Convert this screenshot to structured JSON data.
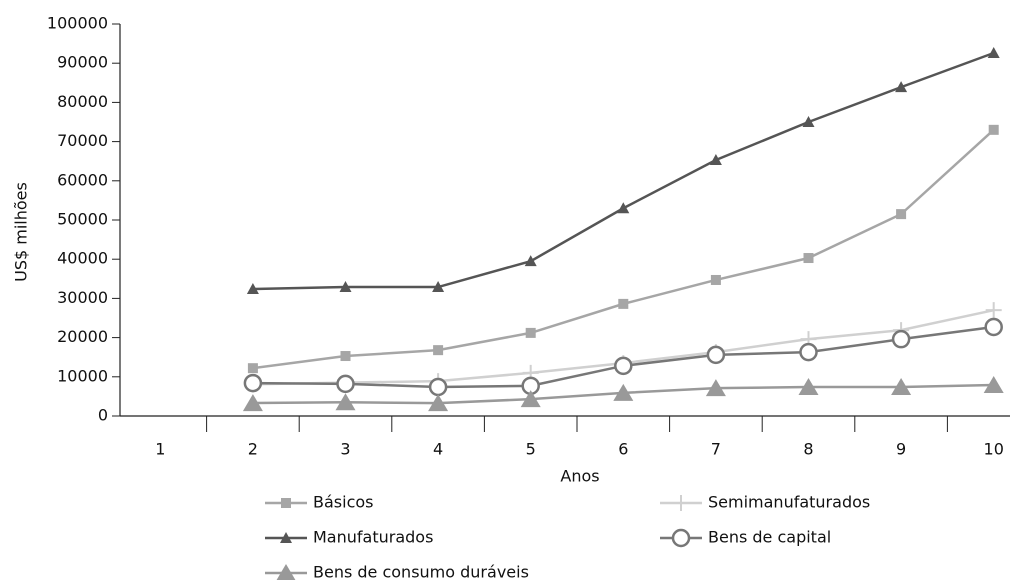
{
  "chart_data": {
    "type": "line",
    "xlabel": "Anos",
    "ylabel": "US$ milhões",
    "categories": [
      "1",
      "2",
      "3",
      "4",
      "5",
      "6",
      "7",
      "8",
      "9",
      "10"
    ],
    "series": [
      {
        "name": "Básicos",
        "color": "#a6a6a6",
        "marker": "square",
        "values": [
          null,
          12200,
          15300,
          16800,
          21200,
          28600,
          34700,
          40300,
          51500,
          73000
        ]
      },
      {
        "name": "Semimanufaturados",
        "color": "#d0d0d0",
        "marker": "plus",
        "values": [
          null,
          8100,
          8500,
          8900,
          11000,
          13500,
          16300,
          19600,
          21900,
          27000
        ]
      },
      {
        "name": "Manufaturados",
        "color": "#555555",
        "marker": "triangle",
        "values": [
          null,
          32400,
          32900,
          32900,
          39500,
          53000,
          65300,
          75000,
          83900,
          92600
        ]
      },
      {
        "name": "Bens de capital",
        "color": "#777777",
        "marker": "circle",
        "values": [
          null,
          8400,
          8200,
          7400,
          7700,
          12800,
          15600,
          16300,
          19600,
          22700
        ]
      },
      {
        "name": "Bens de consumo duráveis",
        "color": "#999999",
        "marker": "bigtriangle",
        "values": [
          null,
          3300,
          3500,
          3300,
          4300,
          5900,
          7100,
          7400,
          7400,
          7900
        ]
      }
    ],
    "ylim": [
      0,
      100000
    ],
    "yticks": [
      0,
      10000,
      20000,
      30000,
      40000,
      50000,
      60000,
      70000,
      80000,
      90000,
      100000
    ],
    "grid": false
  }
}
